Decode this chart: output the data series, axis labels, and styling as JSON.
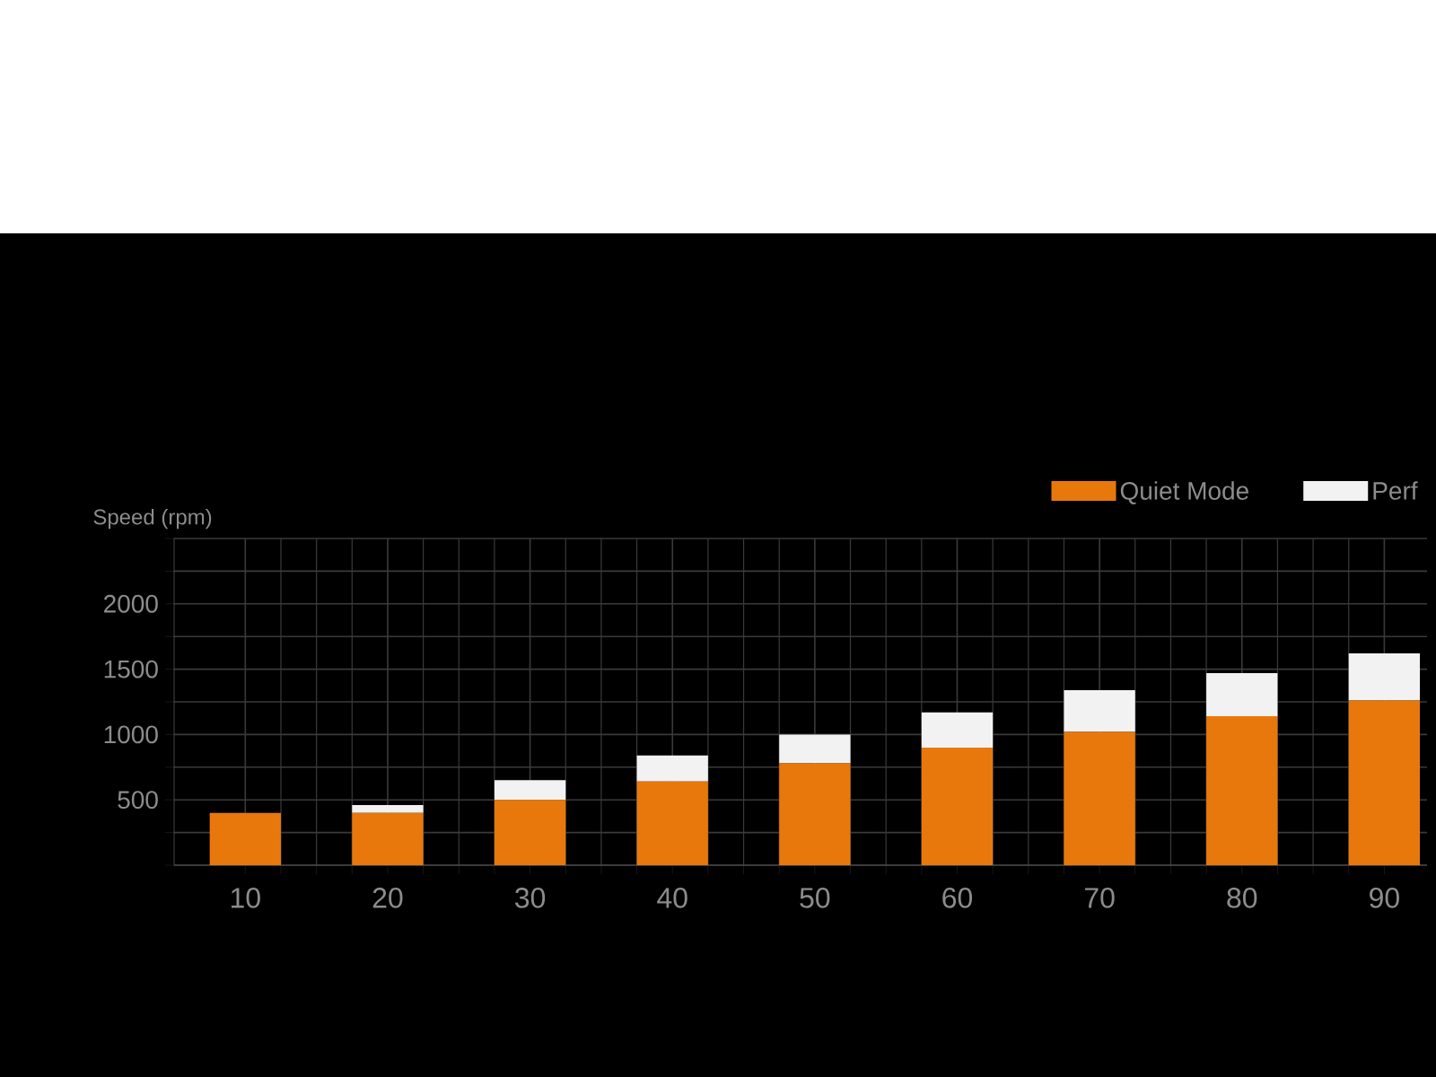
{
  "chart_data": {
    "type": "bar",
    "stacked": true,
    "ylabel": "Speed (rpm)",
    "categories": [
      "10",
      "20",
      "30",
      "40",
      "50",
      "60",
      "70",
      "80",
      "90"
    ],
    "series": [
      {
        "name": "Quiet Mode",
        "color": "#e8780c",
        "values": [
          400,
          400,
          500,
          640,
          780,
          900,
          1020,
          1140,
          1260
        ]
      },
      {
        "name": "Perf",
        "color": "#f2f2f2",
        "values": [
          0,
          60,
          150,
          200,
          220,
          270,
          320,
          330,
          360
        ]
      }
    ],
    "ylim": [
      0,
      2500
    ],
    "yticks": [
      {
        "value": 0,
        "label": null
      },
      {
        "value": 250,
        "label": null
      },
      500,
      {
        "value": 750,
        "label": null
      },
      1000,
      {
        "value": 1250,
        "label": null
      },
      1500,
      {
        "value": 1750,
        "label": null
      },
      2000,
      {
        "value": 2250,
        "label": null
      },
      {
        "value": 2500,
        "label": null
      }
    ],
    "grid": true,
    "legend": "top right"
  }
}
